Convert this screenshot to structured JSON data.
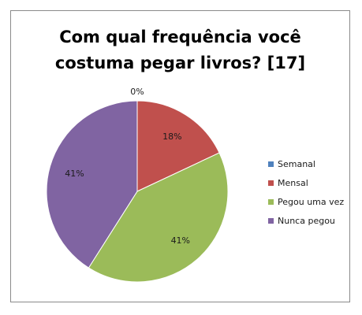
{
  "chart_data": {
    "type": "pie",
    "title": "Com qual frequência você costuma pegar livros? [17]",
    "title_lines": [
      "Com qual frequência você",
      "costuma pegar livros? [17]"
    ],
    "categories": [
      "Semanal",
      "Mensal",
      "Pegou uma vez",
      "Nunca pegou"
    ],
    "values": [
      0,
      18,
      41,
      41
    ],
    "data_labels": [
      "0%",
      "18%",
      "41%",
      "41%"
    ],
    "colors": [
      "#4f81bd",
      "#c0504d",
      "#9bbb59",
      "#8064a2"
    ],
    "legend_position": "right",
    "start_angle": "top",
    "direction": "clockwise"
  }
}
